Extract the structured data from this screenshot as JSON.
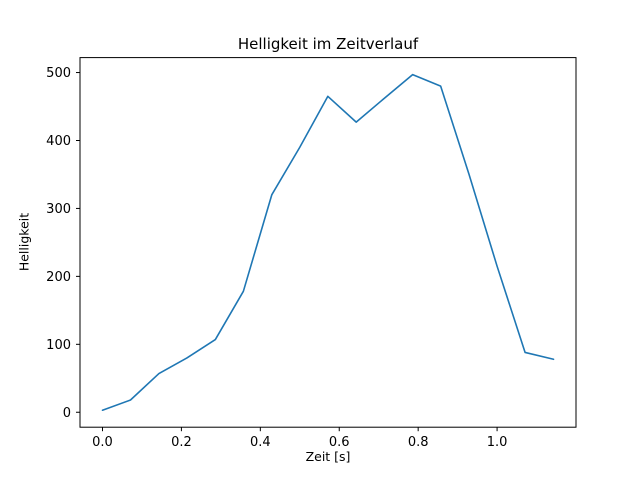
{
  "chart_data": {
    "type": "line",
    "title": "Helligkeit im Zeitverlauf",
    "xlabel": "Zeit [s]",
    "ylabel": "Helligkeit",
    "x": [
      0.0,
      0.071,
      0.143,
      0.214,
      0.286,
      0.357,
      0.429,
      0.5,
      0.571,
      0.643,
      0.714,
      0.786,
      0.857,
      0.929,
      1.0,
      1.071,
      1.143
    ],
    "y": [
      3,
      18,
      57,
      80,
      107,
      178,
      320,
      390,
      465,
      427,
      462,
      497,
      480,
      350,
      215,
      88,
      78
    ],
    "xlim": [
      -0.057,
      1.2
    ],
    "ylim": [
      -22,
      522
    ],
    "xticks": [
      0.0,
      0.2,
      0.4,
      0.6,
      0.8,
      1.0
    ],
    "yticks": [
      0,
      100,
      200,
      300,
      400,
      500
    ],
    "x_tick_labels": [
      "0.0",
      "0.2",
      "0.4",
      "0.6",
      "0.8",
      "1.0"
    ],
    "y_tick_labels": [
      "0",
      "100",
      "200",
      "300",
      "400",
      "500"
    ],
    "line_color": "#1f77b4",
    "frame_color": "#000000",
    "background_color": "#ffffff",
    "grid": false,
    "legend_position": "none"
  }
}
